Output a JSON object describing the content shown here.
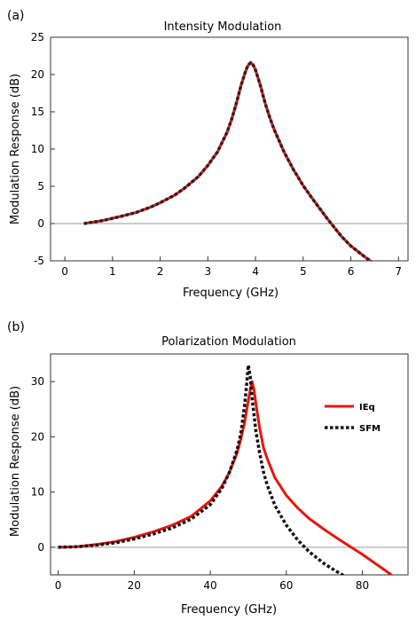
{
  "chart_data": [
    {
      "panel_label": "(a)",
      "type": "line",
      "title": "Intensity Modulation",
      "xlabel": "Frequency (GHz)",
      "ylabel": "Modulation Response (dB)",
      "xlim": [
        -0.3,
        7.2
      ],
      "ylim": [
        -5,
        25
      ],
      "xticks": [
        0,
        1,
        2,
        3,
        4,
        5,
        6,
        7
      ],
      "yticks": [
        -5,
        0,
        5,
        10,
        15,
        20,
        25
      ],
      "zero_line": true,
      "series": [
        {
          "style": "solid",
          "color": "#e8150e",
          "x": [
            0.4,
            0.6,
            0.8,
            1.0,
            1.2,
            1.5,
            1.8,
            2.0,
            2.3,
            2.5,
            2.8,
            3.0,
            3.2,
            3.4,
            3.5,
            3.6,
            3.7,
            3.8,
            3.85,
            3.9,
            3.95,
            4.0,
            4.1,
            4.2,
            4.3,
            4.4,
            4.6,
            4.8,
            5.0,
            5.2,
            5.5,
            5.8,
            6.0,
            6.3,
            6.5
          ],
          "y": [
            0.0,
            0.2,
            0.4,
            0.7,
            1.0,
            1.5,
            2.2,
            2.8,
            3.8,
            4.7,
            6.3,
            7.8,
            9.6,
            12.2,
            14.0,
            16.2,
            18.6,
            20.6,
            21.3,
            21.6,
            21.3,
            20.6,
            18.6,
            16.2,
            14.2,
            12.5,
            9.6,
            7.2,
            5.1,
            3.3,
            0.7,
            -1.7,
            -3.0,
            -4.5,
            -5.4
          ]
        },
        {
          "style": "dotted",
          "color": "#222222",
          "x": [
            0.4,
            0.6,
            0.8,
            1.0,
            1.2,
            1.5,
            1.8,
            2.0,
            2.3,
            2.5,
            2.8,
            3.0,
            3.2,
            3.4,
            3.5,
            3.6,
            3.7,
            3.8,
            3.85,
            3.9,
            3.95,
            4.0,
            4.1,
            4.2,
            4.3,
            4.4,
            4.6,
            4.8,
            5.0,
            5.2,
            5.5,
            5.8,
            6.0,
            6.3,
            6.5
          ],
          "y": [
            0.0,
            0.2,
            0.4,
            0.7,
            1.0,
            1.5,
            2.2,
            2.8,
            3.8,
            4.7,
            6.3,
            7.8,
            9.6,
            12.2,
            14.0,
            16.2,
            18.6,
            20.6,
            21.3,
            21.6,
            21.3,
            20.6,
            18.6,
            16.2,
            14.2,
            12.5,
            9.6,
            7.2,
            5.1,
            3.3,
            0.7,
            -1.7,
            -3.0,
            -4.5,
            -5.4
          ]
        }
      ]
    },
    {
      "panel_label": "(b)",
      "type": "line",
      "title": "Polarization Modulation",
      "xlabel": "Frequency (GHz)",
      "ylabel": "Modulation Response (dB)",
      "xlim": [
        -2,
        92
      ],
      "ylim": [
        -5,
        35
      ],
      "xticks": [
        0,
        20,
        40,
        60,
        80
      ],
      "yticks": [
        0,
        10,
        20,
        30
      ],
      "zero_line": true,
      "legend_position": "right",
      "series": [
        {
          "name": "IEq",
          "style": "solid",
          "color": "#e8150e",
          "x": [
            0,
            5,
            10,
            15,
            20,
            25,
            30,
            35,
            40,
            43,
            45,
            47,
            48,
            49,
            50,
            50.5,
            51,
            51.5,
            52,
            53,
            54,
            55,
            57,
            60,
            63,
            66,
            70,
            75,
            80,
            86,
            88
          ],
          "y": [
            0.0,
            0.1,
            0.5,
            1.0,
            1.8,
            2.8,
            4.0,
            5.6,
            8.4,
            11.0,
            13.5,
            17.0,
            19.5,
            22.5,
            26.5,
            28.5,
            30.0,
            28.5,
            26.0,
            21.5,
            18.0,
            16.0,
            12.6,
            9.4,
            7.1,
            5.2,
            3.2,
            0.9,
            -1.3,
            -4.2,
            -5.2
          ]
        },
        {
          "name": "SFM",
          "style": "dotted",
          "color": "#111111",
          "x": [
            0,
            5,
            10,
            15,
            20,
            25,
            30,
            35,
            40,
            43,
            45,
            47,
            48,
            49,
            49.5,
            50,
            50.5,
            51,
            52,
            53,
            54,
            55,
            57,
            60,
            63,
            66,
            70,
            73,
            76,
            77
          ],
          "y": [
            0.0,
            0.1,
            0.4,
            0.8,
            1.5,
            2.4,
            3.5,
            5.1,
            7.7,
            10.6,
            13.5,
            17.5,
            20.5,
            25.5,
            29.0,
            33.0,
            31.0,
            27.0,
            21.0,
            17.0,
            13.6,
            11.2,
            7.6,
            4.0,
            1.3,
            -0.8,
            -3.0,
            -4.3,
            -5.5,
            -5.8
          ]
        }
      ]
    }
  ]
}
